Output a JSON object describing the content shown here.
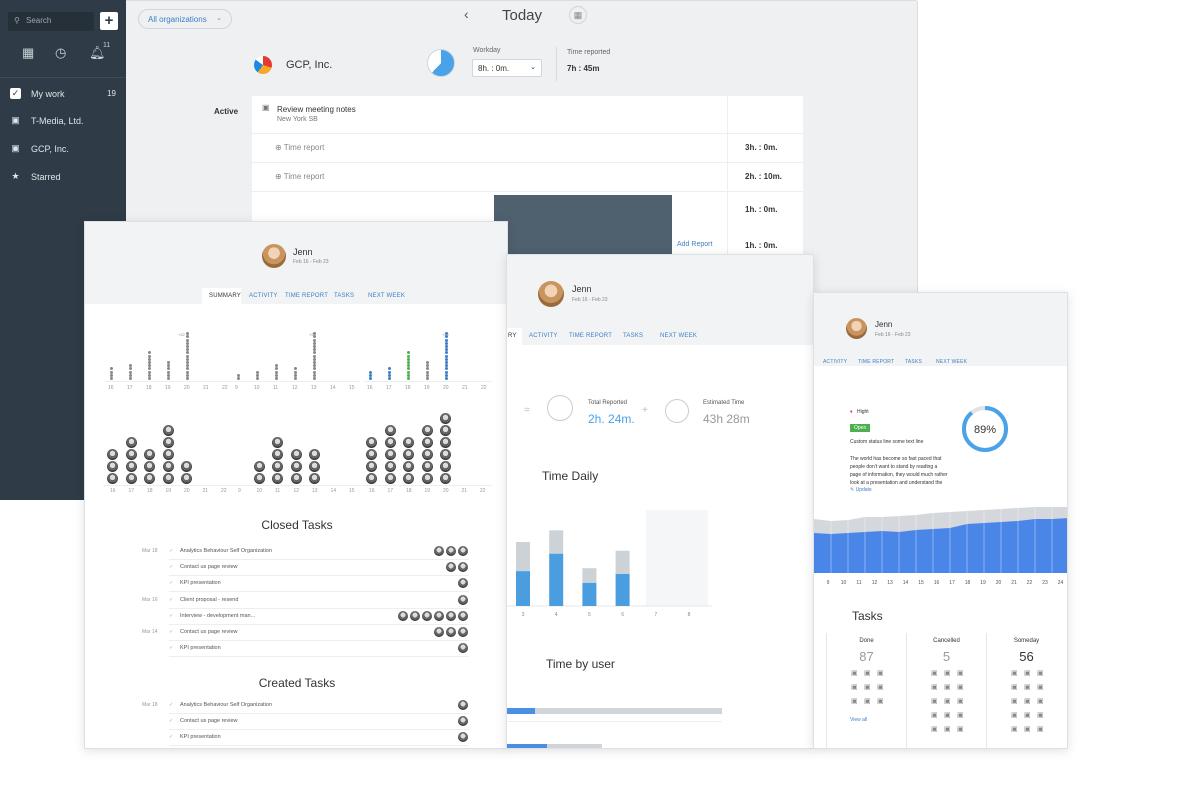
{
  "sidebar": {
    "search_placeholder": "Search",
    "add_label": "+",
    "notif_count": "11",
    "items": [
      {
        "label": "My work",
        "count": "19"
      },
      {
        "label": "T-Media, Ltd."
      },
      {
        "label": "GCP, Inc."
      },
      {
        "label": "Starred"
      }
    ]
  },
  "top": {
    "org_filter": "All organizations",
    "nav_prev": "‹",
    "title": "Today",
    "company": "GCP, Inc.",
    "workday_label": "Workday",
    "workday_value": "8h. : 0m.",
    "time_reported_label": "Time reported",
    "time_reported_value": "7h : 45m"
  },
  "task": {
    "status": "Active",
    "title": "Review meeting notes",
    "subtitle": "New York SB",
    "time_report_label": "Time report",
    "durations": [
      "3h. : 0m.",
      "2h. : 10m.",
      "1h. : 0m.",
      "1h. : 0m."
    ],
    "add_report": "Add Report"
  },
  "summary": {
    "name": "Jenn",
    "dates": "Feb 16 - Feb 23",
    "tabs": [
      "SUMMARY",
      "ACTIVITY",
      "TIME REPORT",
      "TASKS",
      "NEXT WEEK"
    ],
    "plus_labels": [
      "+22",
      "+22",
      "+22"
    ],
    "days": [
      "16",
      "17",
      "18",
      "19",
      "20",
      "21",
      "22",
      "9",
      "10",
      "11",
      "12",
      "13",
      "14",
      "15",
      "16",
      "17",
      "18",
      "19",
      "20",
      "21",
      "22"
    ],
    "closed_title": "Closed Tasks",
    "created_title": "Created Tasks",
    "closed": [
      {
        "date": "Mar 18",
        "label": "Analytics Behaviour Self Organization"
      },
      {
        "date": "",
        "label": "Contact us page review"
      },
      {
        "date": "",
        "label": "KPI presentation"
      },
      {
        "date": "Mar 16",
        "label": "Client proposal - resend"
      },
      {
        "date": "",
        "label": "Interview - development man..."
      },
      {
        "date": "Mar 14",
        "label": "Contact us page review"
      },
      {
        "date": "",
        "label": "KPI presentation"
      }
    ],
    "created": [
      {
        "date": "Mar 18",
        "label": "Analytics Behaviour Self Organization"
      },
      {
        "date": "",
        "label": "Contact us page review"
      },
      {
        "date": "",
        "label": "KPI presentation"
      }
    ]
  },
  "time": {
    "name": "Jenn",
    "dates": "Feb 16 - Feb 23",
    "tabs": [
      "RY",
      "ACTIVITY",
      "TIME REPORT",
      "TASKS",
      "NEXT WEEK"
    ],
    "total_label": "Total Reported",
    "total_value": "2h. 24m.",
    "est_label": "Estimated Time",
    "est_value": "43h 28m",
    "daily_title": "Time Daily",
    "days": [
      "3",
      "4",
      "5",
      "6",
      "7",
      "8"
    ],
    "byuser_title": "Time by user"
  },
  "tasks": {
    "name": "Jenn",
    "dates": "Feb 16 - Feb 23",
    "tabs": [
      "ACTIVITY",
      "TIME REPORT",
      "TASKS",
      "NEXT WEEK"
    ],
    "priority": "Hight",
    "status": "Open",
    "custom": "Custom status line some text line",
    "comment": [
      "The world has become so fast paced that",
      "people don’t want to stand by reading a",
      "page of information, they would much rather",
      "look at a presentation and understand the"
    ],
    "update": "Update",
    "progress": "89%",
    "progress_value": 89,
    "axis": [
      "9",
      "10",
      "11",
      "12",
      "13",
      "14",
      "15",
      "16",
      "17",
      "18",
      "19",
      "20",
      "21",
      "22",
      "23",
      "24"
    ],
    "tasks_title": "Tasks",
    "cols": [
      {
        "label": "Done",
        "count": "87"
      },
      {
        "label": "Cancelled",
        "count": "5"
      },
      {
        "label": "Someday",
        "count": "56"
      }
    ],
    "view_all": "View all"
  },
  "colors": {
    "accent": "#3d7fc4",
    "sidebar": "#2f3b46",
    "blue": "#4a90e2",
    "green": "#4caf50"
  }
}
